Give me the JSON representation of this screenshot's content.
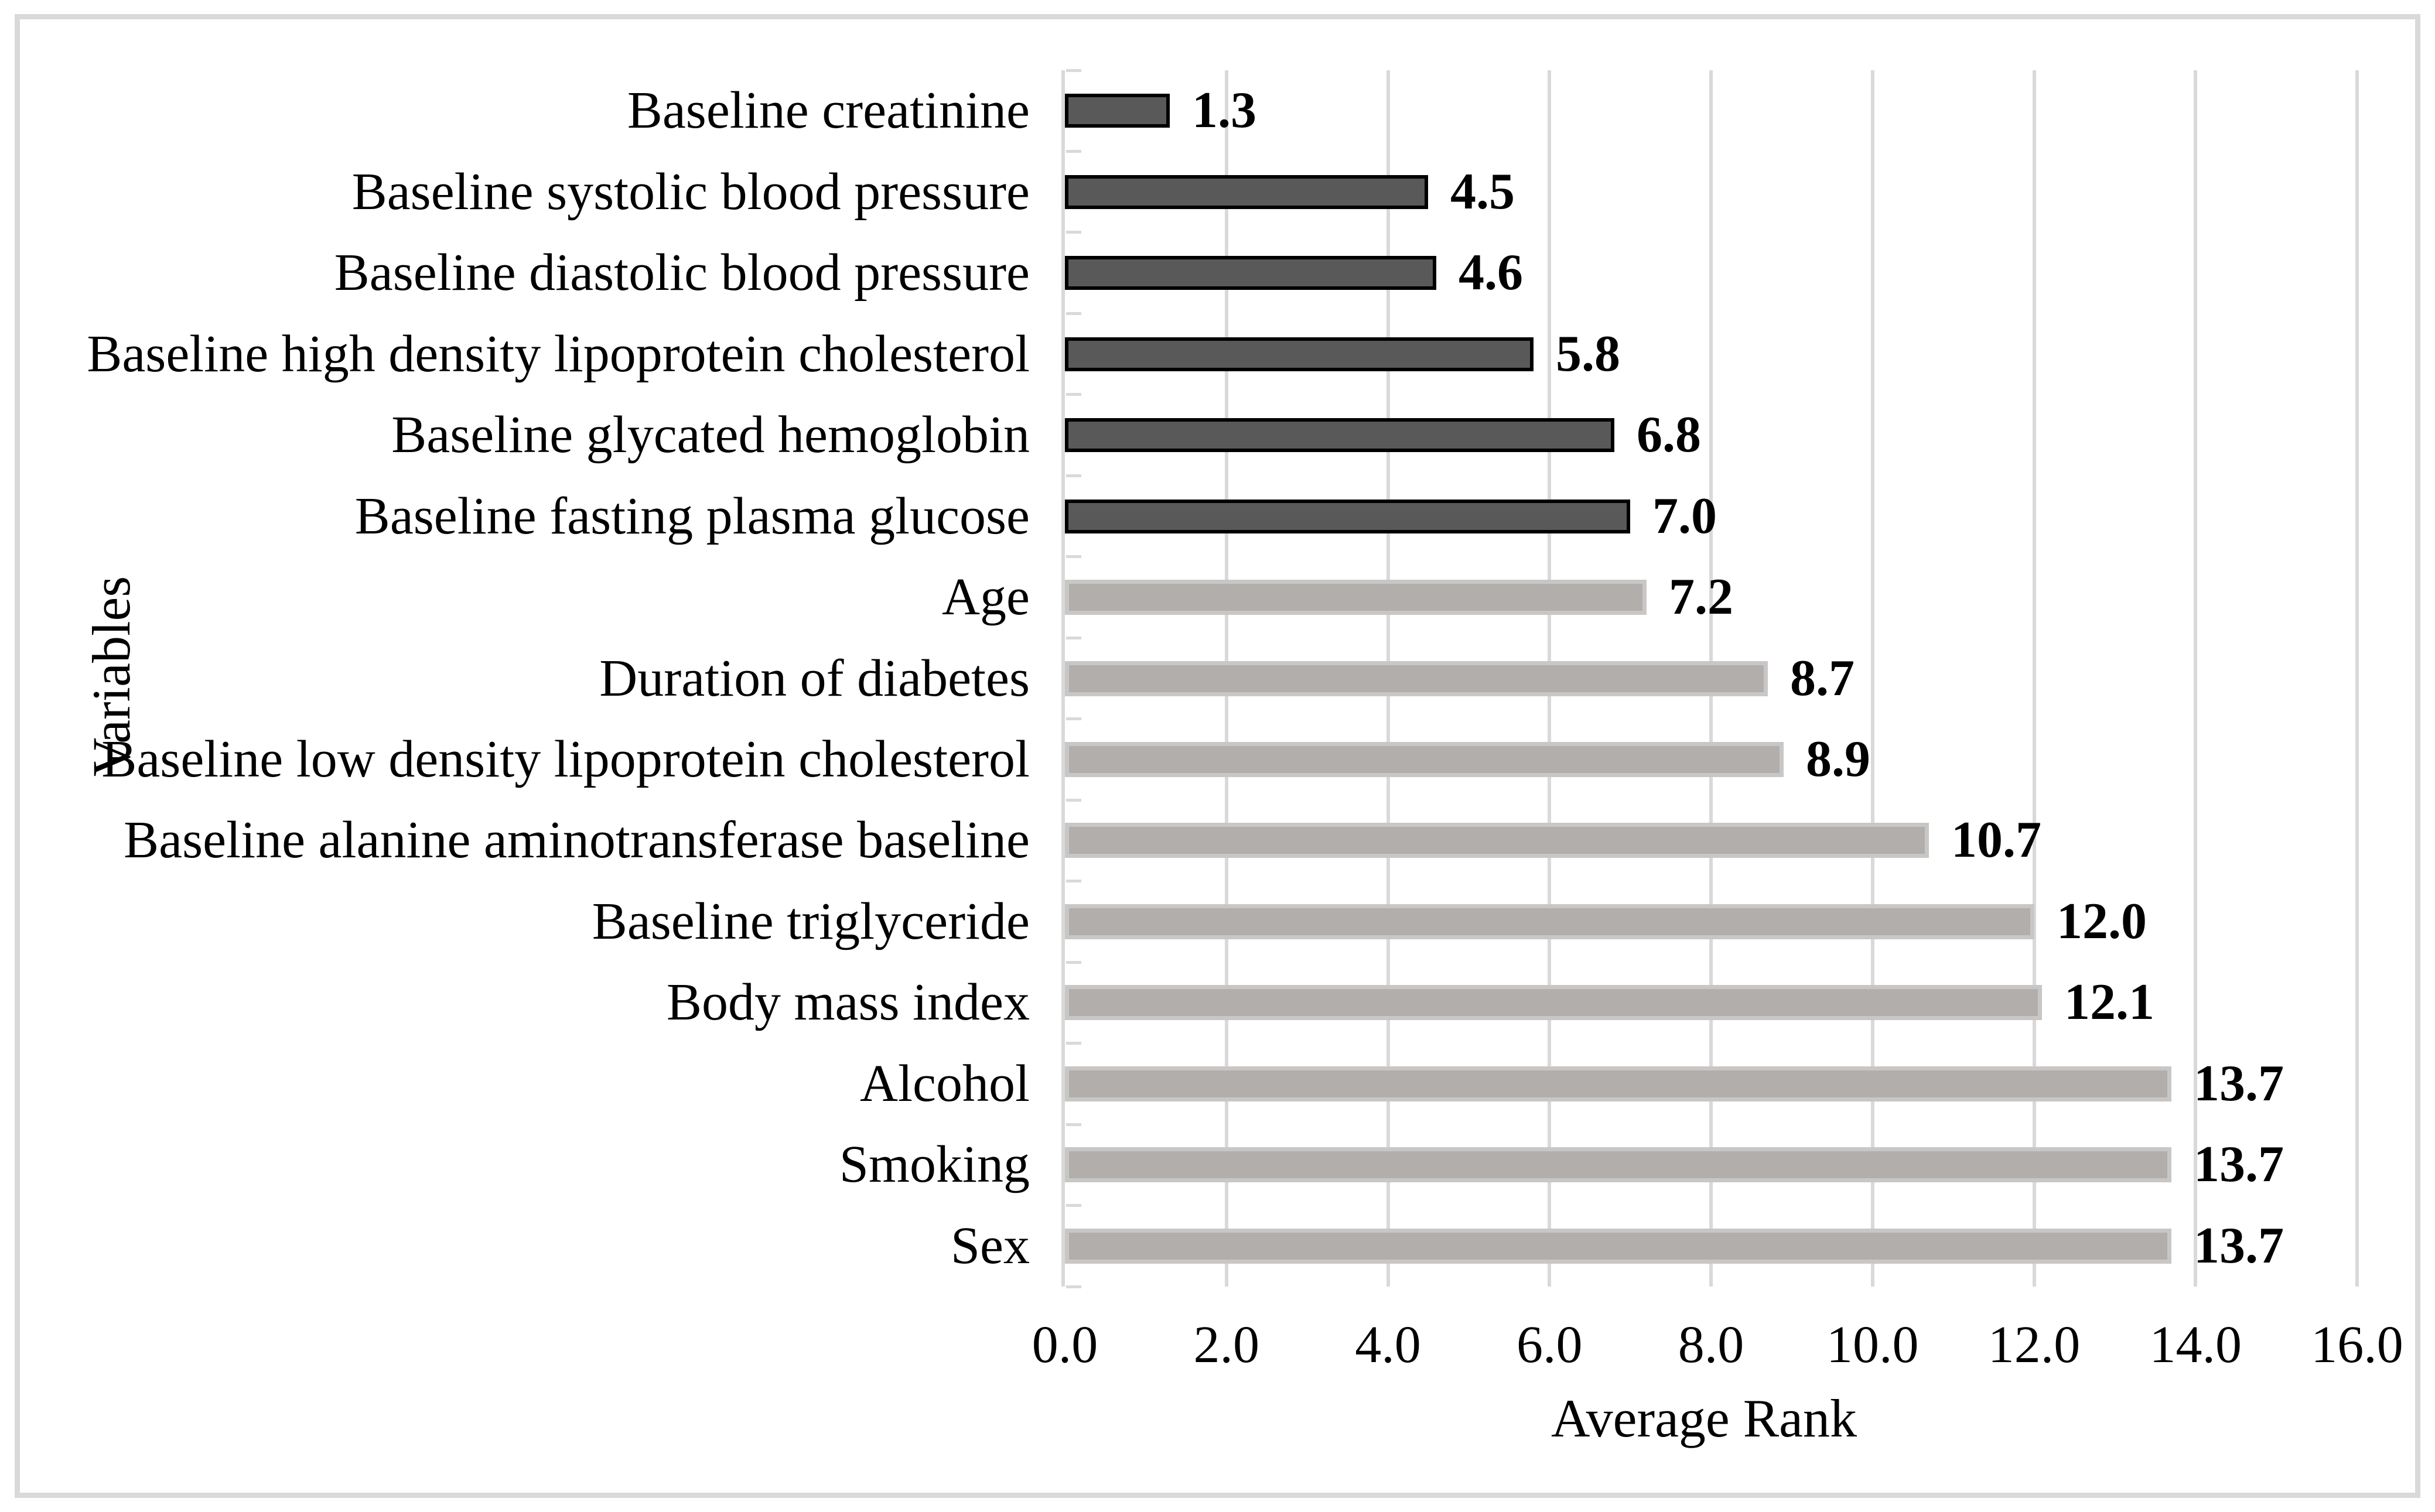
{
  "chart_data": {
    "type": "bar",
    "orientation": "horizontal",
    "title": "",
    "xlabel": "Average Rank",
    "ylabel": "Variables",
    "xlim": [
      0,
      16
    ],
    "x_ticks": [
      "0.0",
      "2.0",
      "4.0",
      "6.0",
      "8.0",
      "10.0",
      "12.0",
      "14.0",
      "16.0"
    ],
    "grid": "vertical-only",
    "legend": "none",
    "value_label_style": "bold, outside end",
    "rows": [
      {
        "category": "Baseline creatinine",
        "value": 1.3,
        "label": "1.3",
        "group": "dark"
      },
      {
        "category": "Baseline systolic blood pressure",
        "value": 4.5,
        "label": "4.5",
        "group": "dark"
      },
      {
        "category": "Baseline diastolic blood pressure",
        "value": 4.6,
        "label": "4.6",
        "group": "dark"
      },
      {
        "category": "Baseline high density lipoprotein cholesterol",
        "value": 5.8,
        "label": "5.8",
        "group": "dark"
      },
      {
        "category": "Baseline glycated hemoglobin",
        "value": 6.8,
        "label": "6.8",
        "group": "dark"
      },
      {
        "category": "Baseline fasting plasma glucose",
        "value": 7.0,
        "label": "7.0",
        "group": "dark"
      },
      {
        "category": "Age",
        "value": 7.2,
        "label": "7.2",
        "group": "light"
      },
      {
        "category": "Duration of diabetes",
        "value": 8.7,
        "label": "8.7",
        "group": "light"
      },
      {
        "category": "Baseline low density lipoprotein cholesterol",
        "value": 8.9,
        "label": "8.9",
        "group": "light"
      },
      {
        "category": "Baseline alanine aminotransferase baseline",
        "value": 10.7,
        "label": "10.7",
        "group": "light"
      },
      {
        "category": "Baseline triglyceride",
        "value": 12.0,
        "label": "12.0",
        "group": "light"
      },
      {
        "category": "Body mass index",
        "value": 12.1,
        "label": "12.1",
        "group": "light"
      },
      {
        "category": "Alcohol",
        "value": 13.7,
        "label": "13.7",
        "group": "light"
      },
      {
        "category": "Smoking",
        "value": 13.7,
        "label": "13.7",
        "group": "light"
      },
      {
        "category": "Sex",
        "value": 13.7,
        "label": "13.7",
        "group": "light"
      }
    ]
  },
  "colors": {
    "dark_bar_fill": "#595959",
    "dark_bar_border": "#000000",
    "light_bar_fill": "#b2aeac",
    "light_bar_border": "#c9c7c6",
    "gridline": "#d9d9d9",
    "axis_line": "#d9d9d9",
    "frame_border": "#d9d9d9",
    "text": "#000000"
  }
}
